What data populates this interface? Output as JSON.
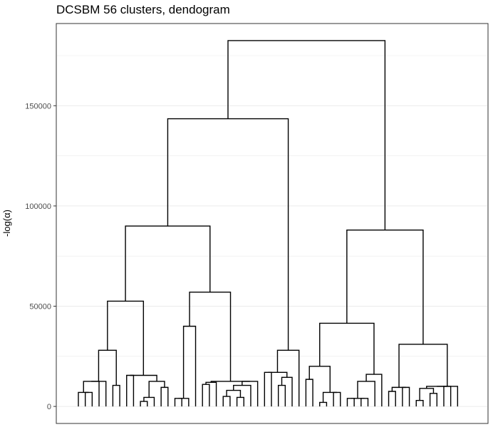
{
  "chart_data": {
    "type": "dendrogram",
    "title": "DCSBM 56 clusters, dendogram",
    "xlabel": "",
    "ylabel": "-log(α)",
    "ylim": [
      -8500,
      191000
    ],
    "y_ticks": [
      0,
      50000,
      100000,
      150000
    ],
    "y_tick_labels": [
      "0",
      "50000",
      "100000",
      "150000"
    ],
    "grid": true,
    "leaf_count": 56,
    "merges": [
      [
        1,
        2,
        3500
      ],
      [
        2,
        3,
        7000
      ],
      [
        3,
        4,
        7000
      ],
      [
        4,
        5,
        12500
      ],
      [
        6,
        7,
        10500
      ],
      [
        5,
        7,
        28000
      ],
      [
        8,
        9,
        15500
      ],
      [
        10,
        11,
        2500
      ],
      [
        11,
        12,
        4500
      ],
      [
        13,
        14,
        9500
      ],
      [
        12,
        14,
        12500
      ],
      [
        9,
        14,
        15500
      ],
      [
        7,
        14,
        52500
      ],
      [
        15,
        16,
        4000
      ],
      [
        16,
        17,
        0
      ],
      [
        17,
        18,
        40000
      ],
      [
        19,
        20,
        11000
      ],
      [
        20,
        21,
        12000
      ],
      [
        22,
        23,
        5000
      ],
      [
        23,
        24,
        8000
      ],
      [
        24,
        25,
        4500
      ],
      [
        25,
        26,
        10500
      ],
      [
        26,
        27,
        12500
      ],
      [
        21,
        27,
        12000
      ],
      [
        18,
        27,
        57000
      ],
      [
        14,
        27,
        90000
      ],
      [
        28,
        29,
        17000
      ],
      [
        30,
        31,
        10500
      ],
      [
        29,
        31,
        14500
      ],
      [
        31,
        32,
        10500
      ],
      [
        32,
        33,
        28000
      ],
      [
        27,
        33,
        143500
      ],
      [
        34,
        35,
        13500
      ],
      [
        36,
        37,
        2000
      ],
      [
        37,
        38,
        5000
      ],
      [
        38,
        39,
        7000
      ],
      [
        35,
        39,
        20000
      ],
      [
        40,
        41,
        4000
      ],
      [
        41,
        42,
        4000
      ],
      [
        42,
        43,
        4000
      ],
      [
        43,
        44,
        12500
      ],
      [
        40,
        44,
        16000
      ],
      [
        39,
        44,
        41500
      ],
      [
        45,
        46,
        7500
      ],
      [
        46,
        47,
        9500
      ],
      [
        47,
        48,
        9500
      ],
      [
        49,
        50,
        3000
      ],
      [
        50,
        51,
        6500
      ],
      [
        51,
        52,
        9000
      ],
      [
        52,
        53,
        10000
      ],
      [
        53,
        54,
        7500
      ],
      [
        48,
        54,
        31000
      ],
      [
        44,
        54,
        88000
      ],
      [
        33,
        54,
        182500
      ],
      [
        54,
        55,
        0
      ]
    ]
  }
}
